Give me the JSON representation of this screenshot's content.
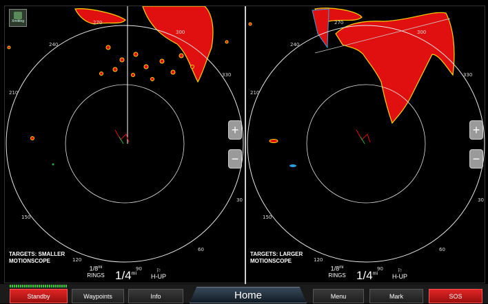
{
  "status": {
    "transmitting_label": "Xmitting"
  },
  "panes": [
    {
      "id": "left",
      "bearings": [
        "270",
        "300",
        "330",
        "240",
        "210",
        "30",
        "60",
        "120",
        "150",
        "90"
      ],
      "targets_line1": "TARGETS: SMALLER",
      "targets_line2": "MOTIONSCOPE",
      "rings_value": "1/8",
      "rings_unit": "mi",
      "rings_label": "RINGS",
      "range_value": "1/4",
      "range_unit": "mi",
      "orientation": "H-UP"
    },
    {
      "id": "right",
      "bearings": [
        "270",
        "300",
        "330",
        "240",
        "210",
        "30",
        "60",
        "120",
        "150",
        "90"
      ],
      "targets_line1": "TARGETS: LARGER",
      "targets_line2": "MOTIONSCOPE",
      "rings_value": "1/8",
      "rings_unit": "mi",
      "rings_label": "RINGS",
      "range_value": "1/4",
      "range_unit": "mi",
      "orientation": "H-UP"
    }
  ],
  "zoom": {
    "in_label": "+",
    "out_label": "−"
  },
  "bottom_bar": {
    "standby": "Standby",
    "waypoints": "Waypoints",
    "info": "Info",
    "home": "Home",
    "menu": "Menu",
    "mark": "Mark",
    "sos": "SOS"
  },
  "colors": {
    "echo_strong": "#e01010",
    "echo_mid": "#ffd400",
    "echo_weak": "#20b040",
    "echo_faint": "#2aa0e0"
  }
}
